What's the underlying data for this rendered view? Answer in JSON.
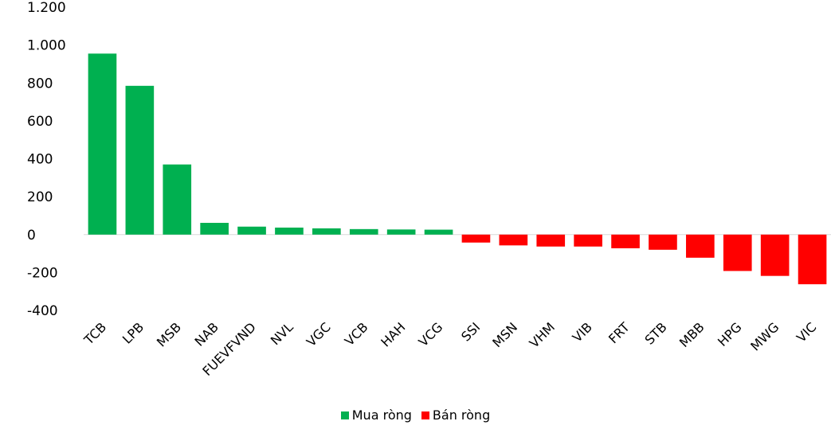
{
  "chart_data": {
    "type": "bar",
    "title": "",
    "xlabel": "",
    "ylabel": "",
    "ylim": [
      -400,
      1200
    ],
    "yticks": [
      -400,
      -200,
      0,
      200,
      400,
      600,
      800,
      1000,
      1200
    ],
    "ytick_labels": [
      "-400",
      "-200",
      "0",
      "200",
      "400",
      "600",
      "800",
      "1.000",
      "1.200"
    ],
    "grid": false,
    "legend_position": "bottom",
    "categories": [
      "TCB",
      "LPB",
      "MSB",
      "NAB",
      "FUEVFVND",
      "NVL",
      "VGC",
      "VCB",
      "HAH",
      "VCG",
      "SSI",
      "MSN",
      "VHM",
      "VIB",
      "FRT",
      "STB",
      "MBB",
      "HPG",
      "MWG",
      "VIC"
    ],
    "values": [
      955,
      785,
      370,
      62,
      42,
      37,
      33,
      29,
      27,
      26,
      -42,
      -57,
      -63,
      -63,
      -72,
      -80,
      -122,
      -192,
      -218,
      -262
    ],
    "series": [
      {
        "name": "Mua ròng",
        "color": "#00b050"
      },
      {
        "name": "Bán ròng",
        "color": "#ff0000"
      }
    ]
  }
}
